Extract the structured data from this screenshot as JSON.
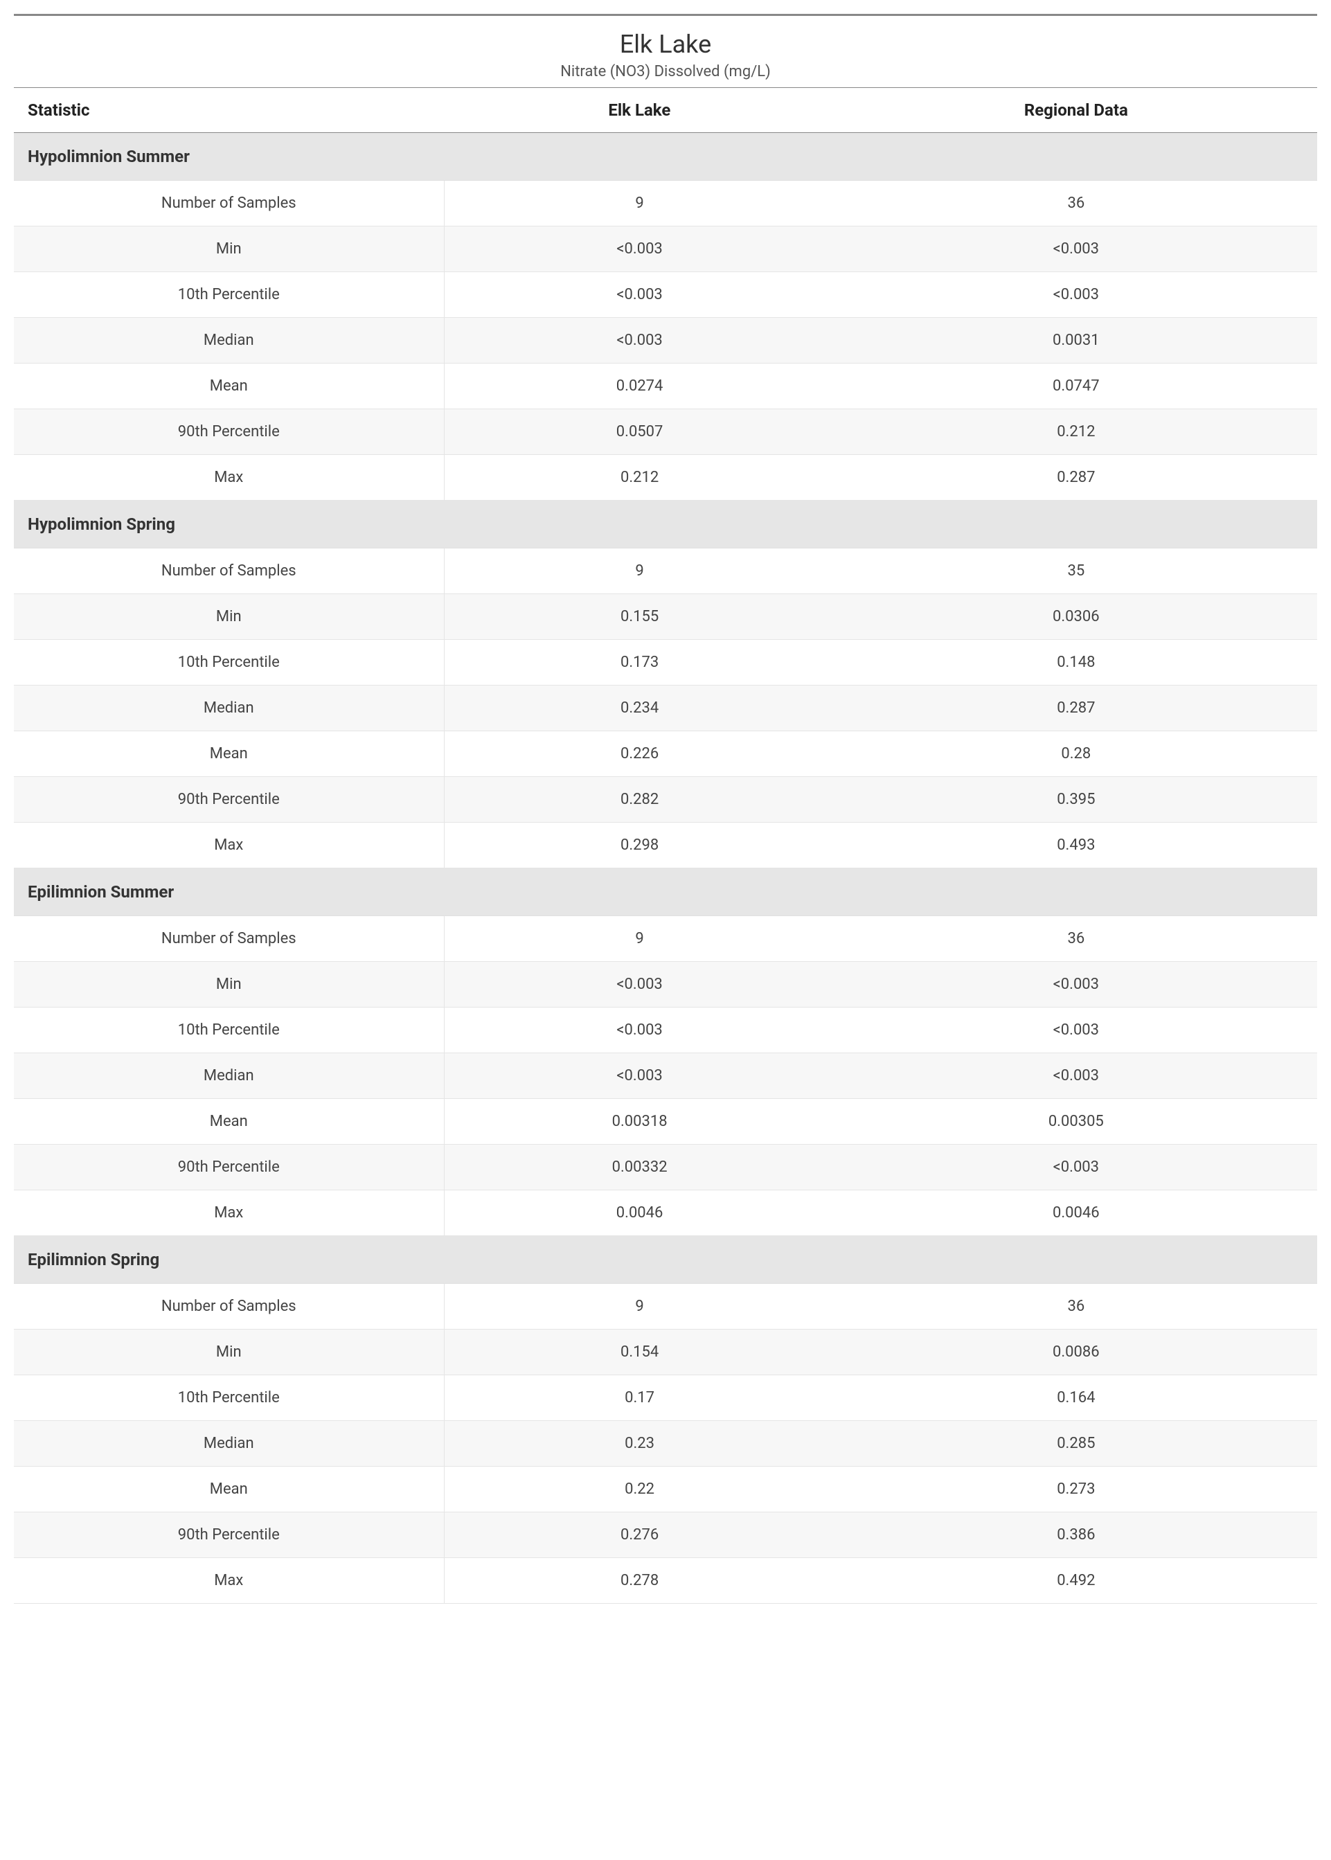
{
  "title": "Elk Lake",
  "subtitle": "Nitrate (NO3) Dissolved (mg/L)",
  "columns": {
    "stat": "Statistic",
    "site": "Elk Lake",
    "regional": "Regional Data"
  },
  "colors": {
    "top_border": "#888888",
    "header_border": "#888888",
    "row_border": "#e5e5e5",
    "section_bg": "#e6e6e6",
    "row_alt_bg": "#f7f7f7",
    "text": "#333333"
  },
  "font_sizes": {
    "title": 36,
    "subtitle": 22,
    "header": 24,
    "section": 24,
    "cell": 22
  },
  "stat_labels": [
    "Number of Samples",
    "Min",
    "10th Percentile",
    "Median",
    "Mean",
    "90th Percentile",
    "Max"
  ],
  "sections": [
    {
      "name": "Hypolimnion Summer",
      "rows": [
        {
          "site": "9",
          "regional": "36"
        },
        {
          "site": "<0.003",
          "regional": "<0.003"
        },
        {
          "site": "<0.003",
          "regional": "<0.003"
        },
        {
          "site": "<0.003",
          "regional": "0.0031"
        },
        {
          "site": "0.0274",
          "regional": "0.0747"
        },
        {
          "site": "0.0507",
          "regional": "0.212"
        },
        {
          "site": "0.212",
          "regional": "0.287"
        }
      ]
    },
    {
      "name": "Hypolimnion Spring",
      "rows": [
        {
          "site": "9",
          "regional": "35"
        },
        {
          "site": "0.155",
          "regional": "0.0306"
        },
        {
          "site": "0.173",
          "regional": "0.148"
        },
        {
          "site": "0.234",
          "regional": "0.287"
        },
        {
          "site": "0.226",
          "regional": "0.28"
        },
        {
          "site": "0.282",
          "regional": "0.395"
        },
        {
          "site": "0.298",
          "regional": "0.493"
        }
      ]
    },
    {
      "name": "Epilimnion Summer",
      "rows": [
        {
          "site": "9",
          "regional": "36"
        },
        {
          "site": "<0.003",
          "regional": "<0.003"
        },
        {
          "site": "<0.003",
          "regional": "<0.003"
        },
        {
          "site": "<0.003",
          "regional": "<0.003"
        },
        {
          "site": "0.00318",
          "regional": "0.00305"
        },
        {
          "site": "0.00332",
          "regional": "<0.003"
        },
        {
          "site": "0.0046",
          "regional": "0.0046"
        }
      ]
    },
    {
      "name": "Epilimnion Spring",
      "rows": [
        {
          "site": "9",
          "regional": "36"
        },
        {
          "site": "0.154",
          "regional": "0.0086"
        },
        {
          "site": "0.17",
          "regional": "0.164"
        },
        {
          "site": "0.23",
          "regional": "0.285"
        },
        {
          "site": "0.22",
          "regional": "0.273"
        },
        {
          "site": "0.276",
          "regional": "0.386"
        },
        {
          "site": "0.278",
          "regional": "0.492"
        }
      ]
    }
  ]
}
